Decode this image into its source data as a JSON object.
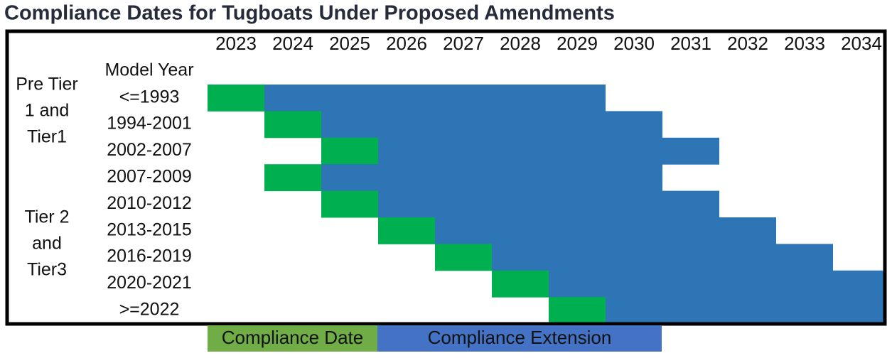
{
  "chart_data": {
    "type": "gantt",
    "title": "Compliance Dates for Tugboats Under Proposed Amendments",
    "y_label": "Model Year",
    "categories": [
      "<=1993",
      "1994-2001",
      "2002-2007",
      "2007-2009",
      "2010-2012",
      "2013-2015",
      "2016-2019",
      "2020-2021",
      ">=2022"
    ],
    "groups": [
      [
        "Pre Tier",
        "1 and",
        "Tier1"
      ],
      [
        "Tier 2",
        "and",
        "Tier3"
      ]
    ],
    "xlim": [
      2022.5,
      2034.5
    ],
    "xticks": [
      2023,
      2024,
      2025,
      2026,
      2027,
      2028,
      2029,
      2030,
      2031,
      2032,
      2033,
      2034
    ],
    "series": [
      {
        "name": "Compliance Date",
        "color": "#00b050",
        "legend_color": "#70ad47",
        "values": [
          2023,
          2024,
          2025,
          2024,
          2025,
          2026,
          2027,
          2028,
          2029
        ]
      },
      {
        "name": "Compliance Extension",
        "color": "#2e75b6",
        "legend_color": "#4472c4",
        "values": [
          2029,
          2030,
          2031,
          2030,
          2031,
          2032,
          2033,
          2034,
          2034
        ]
      }
    ]
  }
}
